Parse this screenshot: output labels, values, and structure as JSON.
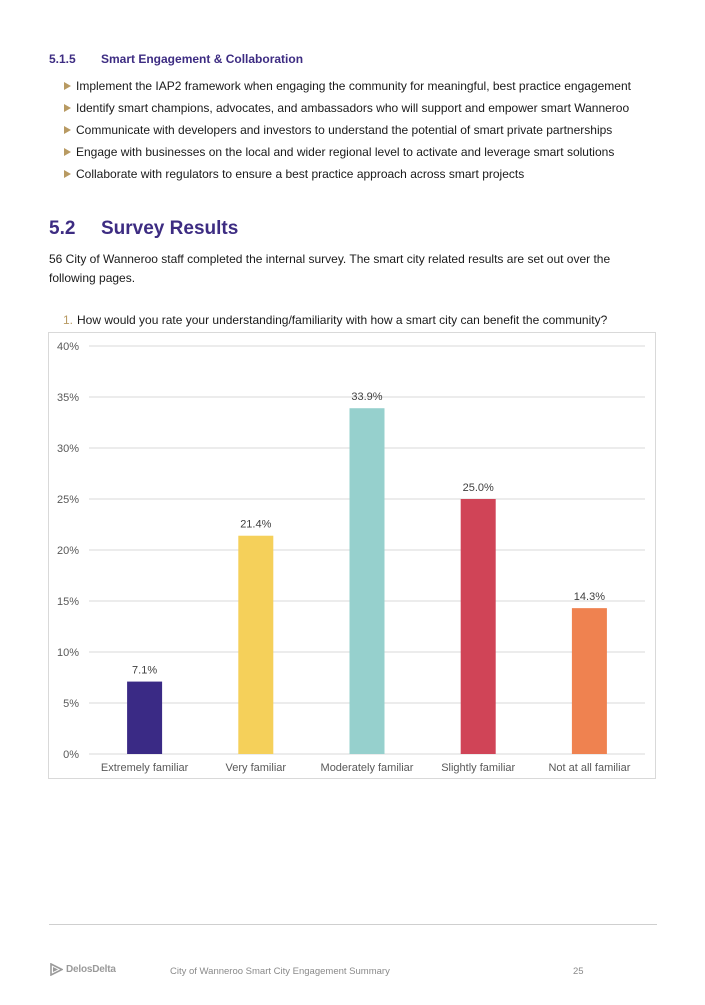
{
  "subsection": {
    "number": "5.1.5",
    "title": "Smart Engagement & Collaboration",
    "bullets": [
      "Implement the IAP2 framework when engaging the community for meaningful, best practice engagement",
      "Identify smart champions, advocates, and ambassadors who will support and empower smart Wanneroo",
      "Communicate with developers and investors to understand the potential of smart private partnerships",
      "Engage with businesses on the local and wider regional level to activate and leverage smart solutions",
      "Collaborate with regulators to ensure a best practice approach across smart projects"
    ]
  },
  "section": {
    "number": "5.2",
    "title": "Survey Results",
    "intro": "56 City of Wanneroo staff completed the internal survey.  The smart city related results are set out over the following pages."
  },
  "question": {
    "number": "1.",
    "text": "How would you rate your understanding/familiarity with how a smart city can benefit the community?"
  },
  "chart_data": {
    "type": "bar",
    "categories": [
      "Extremely familiar",
      "Very familiar",
      "Moderately familiar",
      "Slightly familiar",
      "Not at all familiar"
    ],
    "values": [
      7.1,
      21.4,
      33.9,
      25.0,
      14.3
    ],
    "data_labels": [
      "7.1%",
      "21.4%",
      "33.9%",
      "25.0%",
      "14.3%"
    ],
    "colors": [
      "#3a2a85",
      "#f5d05a",
      "#96d0cd",
      "#d04457",
      "#ef8250"
    ],
    "ylim": [
      0,
      40
    ],
    "yticks": [
      0,
      5,
      10,
      15,
      20,
      25,
      30,
      35,
      40
    ],
    "ytick_labels": [
      "0%",
      "5%",
      "10%",
      "15%",
      "20%",
      "25%",
      "30%",
      "35%",
      "40%"
    ],
    "grid": true,
    "title": "",
    "xlabel": "",
    "ylabel": ""
  },
  "footer": {
    "logo_text": "DelosDelta",
    "document_title": "City of Wanneroo Smart City Engagement Summary",
    "page_number": "25"
  }
}
